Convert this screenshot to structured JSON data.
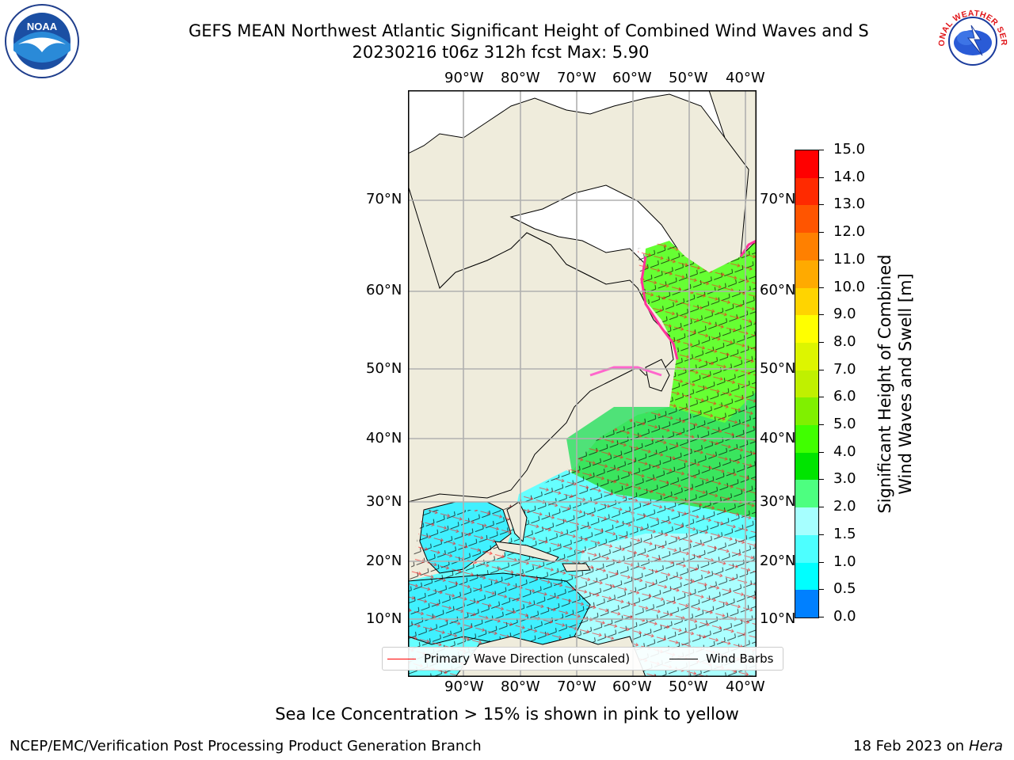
{
  "title": {
    "line1": "GEFS MEAN Northwest Atlantic Significant Height of Combined Wind Waves and S",
    "line2": "20230216 t06z 312h fcst   Max: 5.90"
  },
  "lon_ticks": [
    "90°W",
    "80°W",
    "70°W",
    "60°W",
    "50°W",
    "40°W"
  ],
  "lat_ticks": [
    "70°N",
    "60°N",
    "50°N",
    "40°N",
    "30°N",
    "20°N",
    "10°N"
  ],
  "colorbar": {
    "label_line1": "Significant Height of Combined",
    "label_line2": "Wind Waves and Swell [m]",
    "ticks": [
      "15.0",
      "14.0",
      "13.0",
      "12.0",
      "11.0",
      "10.0",
      "9.0",
      "8.0",
      "7.0",
      "6.0",
      "5.0",
      "4.0",
      "3.0",
      "2.0",
      "1.5",
      "1.0",
      "0.5",
      "0.0"
    ],
    "colors": [
      "#ff0000",
      "#ff2a00",
      "#ff5500",
      "#ff8000",
      "#ffaa00",
      "#ffd400",
      "#ffff00",
      "#ddf500",
      "#c0f000",
      "#80f000",
      "#40ff00",
      "#00e400",
      "#4dff80",
      "#a6ffff",
      "#4dffff",
      "#00ffff",
      "#0080ff",
      "#0000ff"
    ]
  },
  "legend": {
    "primary_wave": "Primary Wave Direction (unscaled)",
    "wind_barbs": "Wind Barbs",
    "primary_color": "#ff0000",
    "barb_color": "#000000"
  },
  "note": "Sea Ice Concentration > 15% is shown in pink to yellow",
  "footer": {
    "left": "NCEP/EMC/Verification Post Processing Product Generation Branch",
    "right_date": "18 Feb 2023 on",
    "right_host": "Hera"
  },
  "logos": {
    "noaa": "NOAA",
    "nws": "NATIONAL WEATHER SERVICE"
  },
  "colors": {
    "land": "#efecdc",
    "ice_land": "#ffffff",
    "grid": "#b0b0b0"
  }
}
